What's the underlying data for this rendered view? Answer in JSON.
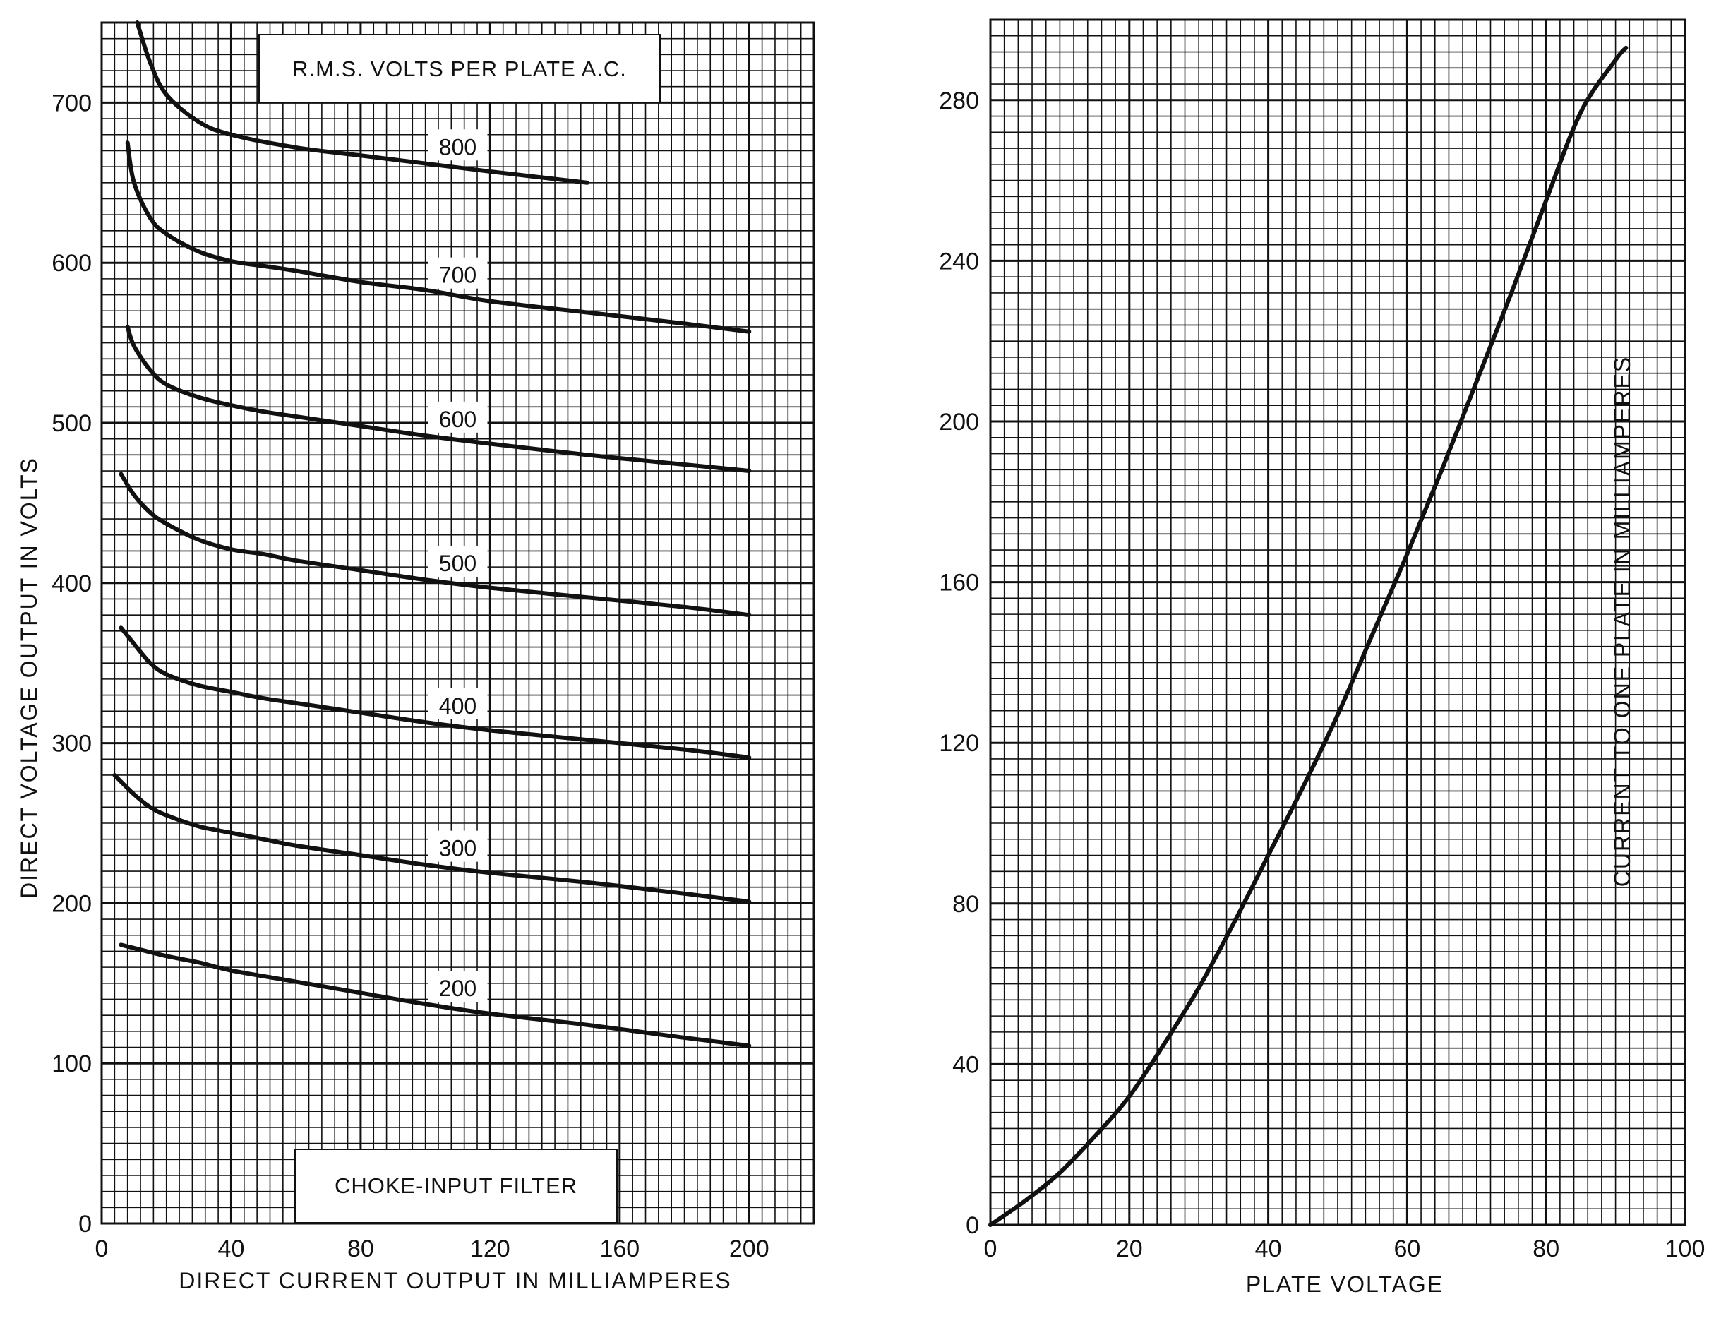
{
  "chart_data": [
    {
      "type": "line",
      "title": "R.M.S. VOLTS PER PLATE A.C.",
      "annotation": "CHOKE-INPUT FILTER",
      "xlabel": "DIRECT CURRENT OUTPUT IN MILLIAMPERES",
      "ylabel": "DIRECT VOLTAGE OUTPUT IN VOLTS",
      "xlim": [
        0,
        220
      ],
      "ylim": [
        0,
        750
      ],
      "xticks": [
        0,
        40,
        80,
        120,
        160,
        200
      ],
      "yticks": [
        0,
        100,
        200,
        300,
        400,
        500,
        600,
        700
      ],
      "grid": true,
      "series": [
        {
          "name": "800",
          "x": [
            11,
            15,
            20,
            30,
            40,
            60,
            80,
            100,
            120,
            150
          ],
          "y": [
            750,
            725,
            705,
            688,
            680,
            672,
            667,
            662,
            657,
            650
          ]
        },
        {
          "name": "700",
          "x": [
            8,
            10,
            15,
            20,
            30,
            40,
            50,
            60,
            80,
            100,
            120,
            150,
            180,
            200
          ],
          "y": [
            675,
            650,
            628,
            618,
            607,
            601,
            598,
            595,
            588,
            583,
            576,
            569,
            562,
            557
          ]
        },
        {
          "name": "600",
          "x": [
            8,
            10,
            15,
            20,
            30,
            40,
            50,
            60,
            80,
            100,
            120,
            150,
            180,
            200
          ],
          "y": [
            560,
            548,
            533,
            524,
            516,
            511,
            507,
            504,
            498,
            492,
            487,
            480,
            474,
            470
          ]
        },
        {
          "name": "500",
          "x": [
            6,
            10,
            15,
            20,
            30,
            40,
            50,
            60,
            80,
            100,
            120,
            150,
            180,
            200
          ],
          "y": [
            468,
            455,
            444,
            437,
            427,
            421,
            418,
            414,
            408,
            402,
            397,
            391,
            385,
            380
          ]
        },
        {
          "name": "400",
          "x": [
            6,
            10,
            15,
            20,
            30,
            40,
            50,
            60,
            80,
            100,
            120,
            150,
            180,
            200
          ],
          "y": [
            372,
            362,
            350,
            343,
            336,
            332,
            328,
            325,
            319,
            313,
            308,
            302,
            296,
            291
          ]
        },
        {
          "name": "300",
          "x": [
            4,
            10,
            15,
            20,
            30,
            40,
            50,
            60,
            80,
            100,
            120,
            150,
            180,
            200
          ],
          "y": [
            280,
            268,
            260,
            255,
            248,
            244,
            240,
            236,
            230,
            224,
            219,
            213,
            206,
            201
          ]
        },
        {
          "name": "200",
          "x": [
            6,
            10,
            20,
            30,
            40,
            60,
            80,
            100,
            120,
            150,
            180,
            200
          ],
          "y": [
            174,
            172,
            167,
            163,
            158,
            151,
            144,
            137,
            131,
            124,
            116,
            111
          ]
        }
      ]
    },
    {
      "type": "line",
      "title": "",
      "xlabel": "PLATE VOLTAGE",
      "ylabel": "CURRENT TO ONE PLATE IN MILLIAMPERES",
      "xlim": [
        0,
        100
      ],
      "ylim": [
        0,
        300
      ],
      "xticks": [
        0,
        20,
        40,
        60,
        80,
        100
      ],
      "yticks": [
        0,
        40,
        80,
        120,
        160,
        200,
        240,
        280
      ],
      "grid": true,
      "series": [
        {
          "name": "",
          "x": [
            0,
            5,
            10,
            15,
            20,
            25,
            30,
            35,
            40,
            45,
            50,
            55,
            60,
            65,
            70,
            75,
            80,
            85,
            90,
            91.5
          ],
          "y": [
            0,
            6,
            13,
            22,
            32,
            45,
            59,
            75,
            92,
            109,
            127,
            147,
            167,
            188,
            210,
            232,
            255,
            277,
            290,
            293
          ]
        }
      ]
    }
  ]
}
